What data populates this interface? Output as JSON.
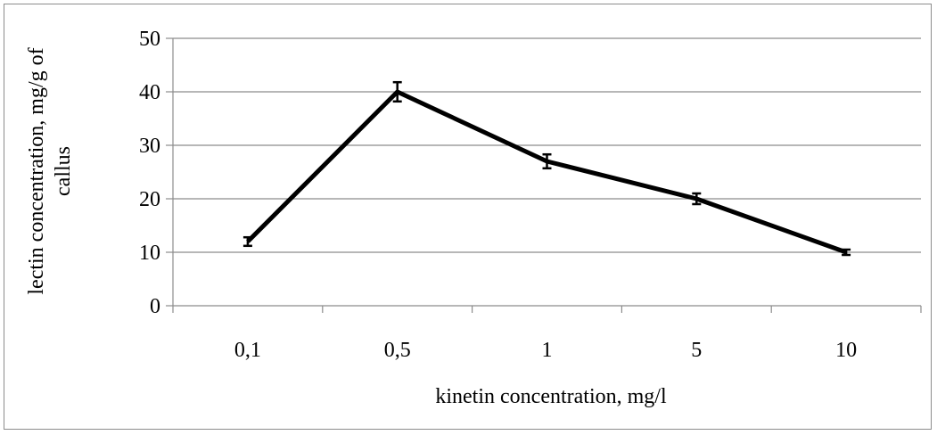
{
  "chart_data": {
    "type": "line",
    "categories": [
      "0,1",
      "0,5",
      "1",
      "5",
      "10"
    ],
    "series": [
      {
        "values": [
          12,
          40,
          27,
          20,
          10
        ],
        "errors": [
          0.8,
          1.8,
          1.3,
          1.0,
          0.5
        ]
      }
    ],
    "xlabel": "kinetin concentration, mg/l",
    "ylabel_lines": [
      "lectin concentration, mg/g of",
      "callus"
    ],
    "ylim": [
      0,
      50
    ],
    "yticks": [
      0,
      10,
      20,
      30,
      40,
      50
    ],
    "grid": true,
    "legend": "none",
    "colors": {
      "line": "#000000",
      "grid": "#8c8c8c",
      "axis": "#8c8c8c"
    }
  }
}
